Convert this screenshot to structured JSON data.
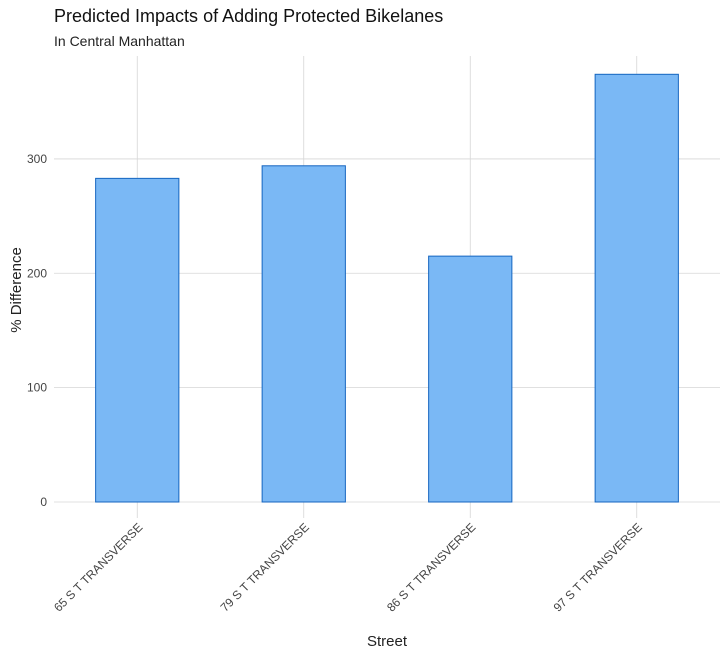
{
  "chart_data": {
    "type": "bar",
    "title": "Predicted Impacts of Adding Protected Bikelanes",
    "subtitle": "In Central Manhattan",
    "xlabel": "Street",
    "ylabel": "% Difference",
    "categories": [
      "65 S T TRANSVERSE",
      "79 S T TRANSVERSE",
      "86 S T TRANSVERSE",
      "97 S T TRANSVERSE"
    ],
    "values": [
      283,
      294,
      215,
      374
    ],
    "ylim": [
      0,
      390
    ],
    "yticks": [
      0,
      100,
      200,
      300
    ],
    "grid": true,
    "bar_fill": "#7ab8f5",
    "bar_stroke": "#1565c0"
  }
}
